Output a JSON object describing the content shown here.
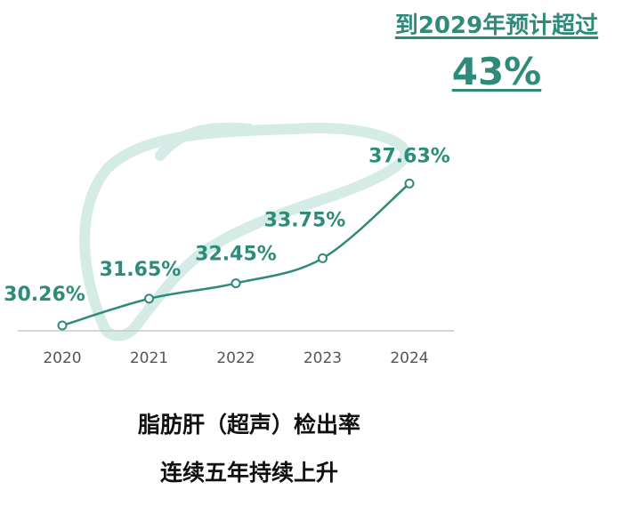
{
  "callout": {
    "line1": "到2029年预计超过",
    "line2": "43%"
  },
  "caption": {
    "line1": "脂肪肝（超声）检出率",
    "line2": "连续五年持续上升"
  },
  "colors": {
    "accent": "#2e8b7a",
    "liver": "#d4ebe6",
    "axis": "#c8c8c8",
    "tick_text": "#555555"
  },
  "chart_data": {
    "type": "line",
    "x": [
      "2020",
      "2021",
      "2022",
      "2023",
      "2024"
    ],
    "series": [
      {
        "values": [
          30.26,
          31.65,
          32.45,
          33.75,
          37.63
        ],
        "data_labels": [
          "30.26%",
          "31.65%",
          "32.45%",
          "33.75%",
          "37.63%"
        ]
      }
    ],
    "title": "",
    "xlabel": "",
    "ylabel": "",
    "grid": false,
    "legend": "none"
  }
}
